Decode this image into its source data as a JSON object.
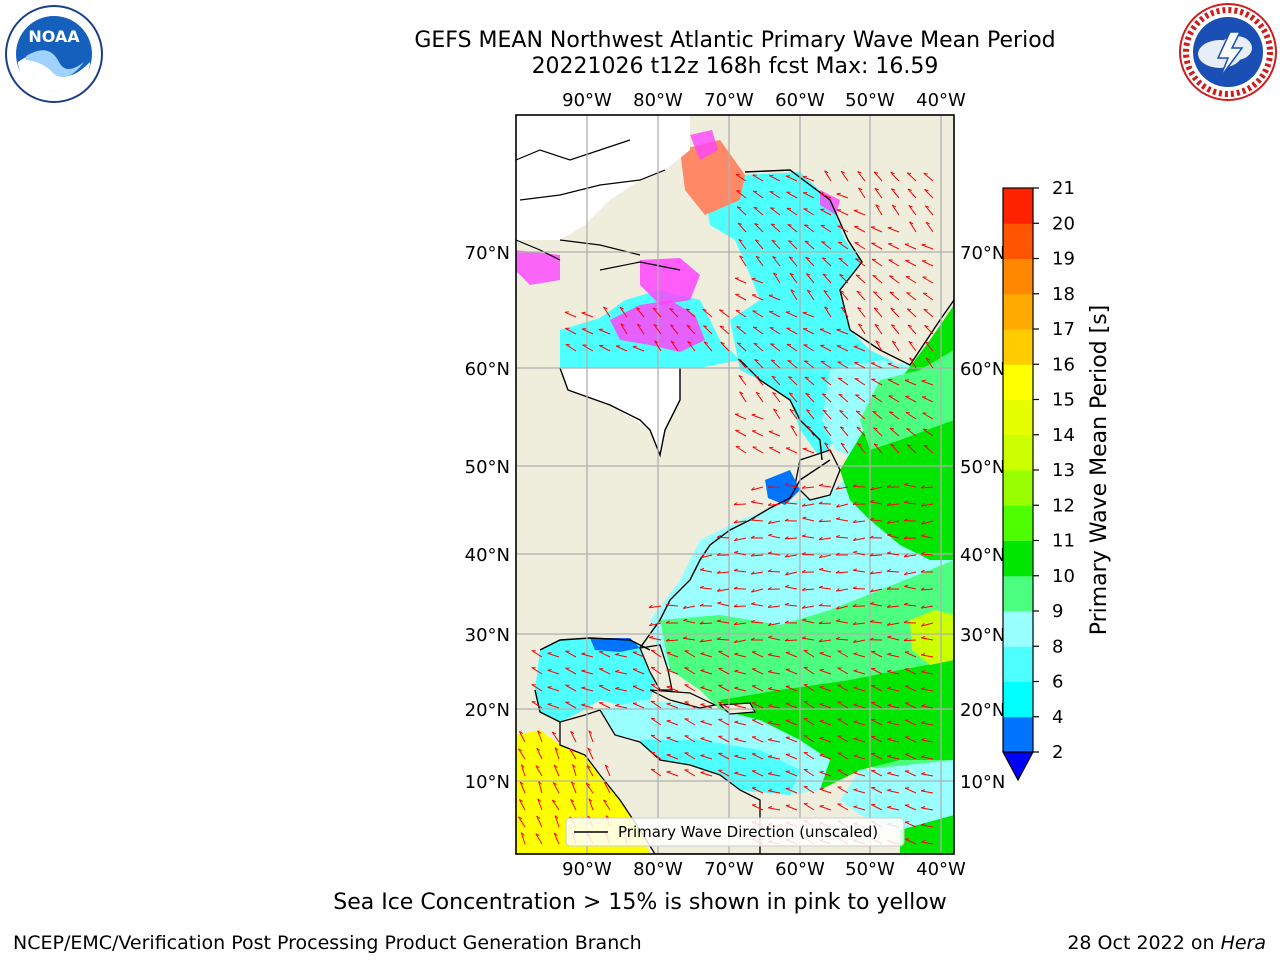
{
  "title": {
    "line1": "GEFS MEAN Northwest Atlantic Primary Wave Mean Period",
    "line2": "20221026 t12z 168h fcst   Max: 16.59"
  },
  "logos": {
    "noaa": {
      "text": "NOAA",
      "icon": "noaa-logo"
    },
    "nws": {
      "icon": "nws-logo"
    }
  },
  "map": {
    "lon_ticks": [
      "90°W",
      "80°W",
      "70°W",
      "60°W",
      "50°W",
      "40°W"
    ],
    "lat_ticks": [
      "70°N",
      "60°N",
      "50°N",
      "40°N",
      "30°N",
      "20°N",
      "10°N"
    ],
    "legend": "Primary Wave Direction (unscaled)",
    "colors": {
      "land": "#efeddc",
      "ocean_low": "#00ffff",
      "ocean_mid": "#99ffff",
      "ocean_high": "#00e600",
      "ice_pink": "#ff44ff",
      "tropics": "#ffff00",
      "arrows": "#ff0000",
      "gridlines": "#b0b0b0"
    }
  },
  "colorbar": {
    "label": "Primary Wave Mean Period [s]",
    "ticks": [
      "2",
      "4",
      "6",
      "8",
      "9",
      "10",
      "11",
      "12",
      "13",
      "14",
      "15",
      "16",
      "17",
      "18",
      "19",
      "20",
      "21"
    ],
    "colors": [
      "#0074ff",
      "#00ffff",
      "#4dffff",
      "#99ffff",
      "#4dff80",
      "#00e600",
      "#4dff00",
      "#99ff00",
      "#ccff00",
      "#e6ff00",
      "#ffff00",
      "#ffcc00",
      "#ffaa00",
      "#ff8800",
      "#ff5500",
      "#ff2200"
    ],
    "under_color": "#0000ff"
  },
  "footer": {
    "sea_ice_note": "Sea Ice Concentration > 15% is shown in pink to yellow",
    "left": "NCEP/EMC/Verification Post Processing Product Generation Branch",
    "right_date": "28 Oct 2022 on ",
    "right_host": "Hera"
  }
}
